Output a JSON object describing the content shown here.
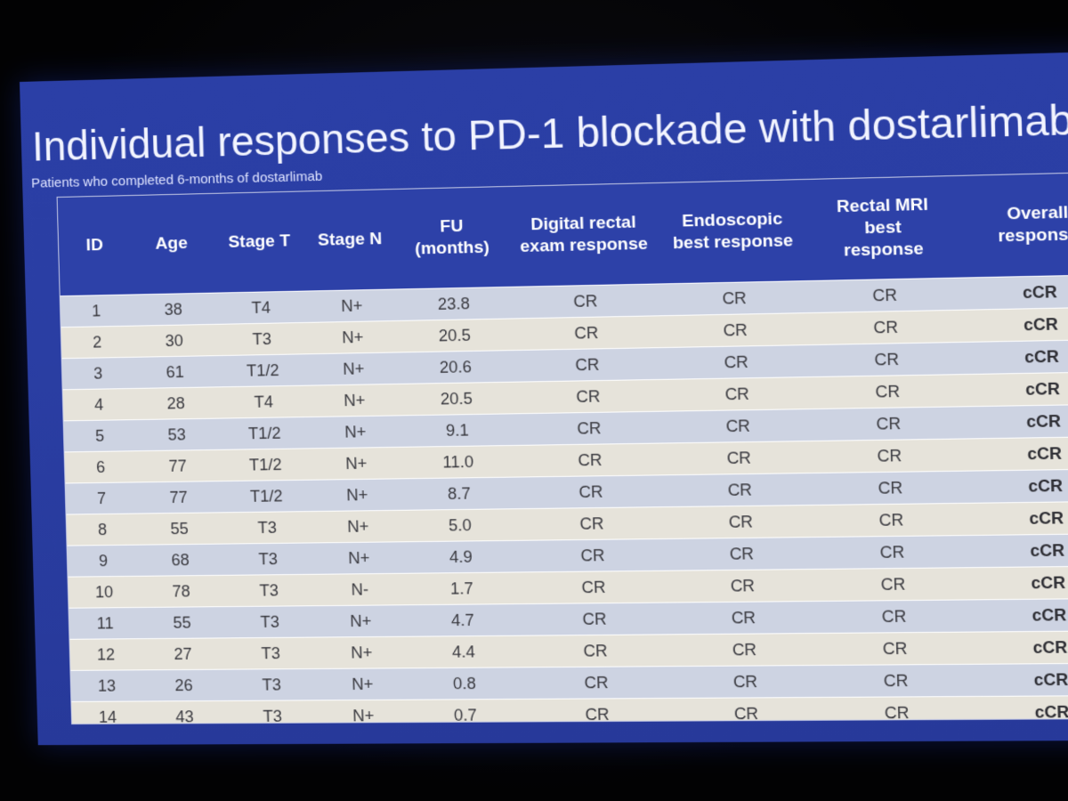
{
  "slide": {
    "title": "Individual responses to PD-1 blockade with dostarlimab",
    "subtitle": "Patients who completed 6-months of dostarlimab"
  },
  "table": {
    "headers": {
      "id": "ID",
      "age": "Age",
      "stage_t": "Stage T",
      "stage_n": "Stage N",
      "fu_line1": "FU",
      "fu_line2": "(months)",
      "dre_line1": "Digital rectal",
      "dre_line2": "exam response",
      "endo_line1": "Endoscopic",
      "endo_line2": "best response",
      "mri_line1": "Rectal MRI",
      "mri_line2": "best",
      "mri_line3": "response",
      "overall_line1": "Overall",
      "overall_line2": "response"
    },
    "rows": [
      [
        "1",
        "38",
        "T4",
        "N+",
        "23.8",
        "CR",
        "CR",
        "CR",
        "cCR"
      ],
      [
        "2",
        "30",
        "T3",
        "N+",
        "20.5",
        "CR",
        "CR",
        "CR",
        "cCR"
      ],
      [
        "3",
        "61",
        "T1/2",
        "N+",
        "20.6",
        "CR",
        "CR",
        "CR",
        "cCR"
      ],
      [
        "4",
        "28",
        "T4",
        "N+",
        "20.5",
        "CR",
        "CR",
        "CR",
        "cCR"
      ],
      [
        "5",
        "53",
        "T1/2",
        "N+",
        "9.1",
        "CR",
        "CR",
        "CR",
        "cCR"
      ],
      [
        "6",
        "77",
        "T1/2",
        "N+",
        "11.0",
        "CR",
        "CR",
        "CR",
        "cCR"
      ],
      [
        "7",
        "77",
        "T1/2",
        "N+",
        "8.7",
        "CR",
        "CR",
        "CR",
        "cCR"
      ],
      [
        "8",
        "55",
        "T3",
        "N+",
        "5.0",
        "CR",
        "CR",
        "CR",
        "cCR"
      ],
      [
        "9",
        "68",
        "T3",
        "N+",
        "4.9",
        "CR",
        "CR",
        "CR",
        "cCR"
      ],
      [
        "10",
        "78",
        "T3",
        "N-",
        "1.7",
        "CR",
        "CR",
        "CR",
        "cCR"
      ],
      [
        "11",
        "55",
        "T3",
        "N+",
        "4.7",
        "CR",
        "CR",
        "CR",
        "cCR"
      ],
      [
        "12",
        "27",
        "T3",
        "N+",
        "4.4",
        "CR",
        "CR",
        "CR",
        "cCR"
      ],
      [
        "13",
        "26",
        "T3",
        "N+",
        "0.8",
        "CR",
        "CR",
        "CR",
        "cCR"
      ],
      [
        "14",
        "43",
        "T3",
        "N+",
        "0.7",
        "CR",
        "CR",
        "CR",
        "cCR"
      ]
    ]
  },
  "colors": {
    "slide_background": "#2a3ea3",
    "header_background": "#2d41a8",
    "row_odd": "#cdd3e2",
    "row_even": "#e6e3da"
  }
}
